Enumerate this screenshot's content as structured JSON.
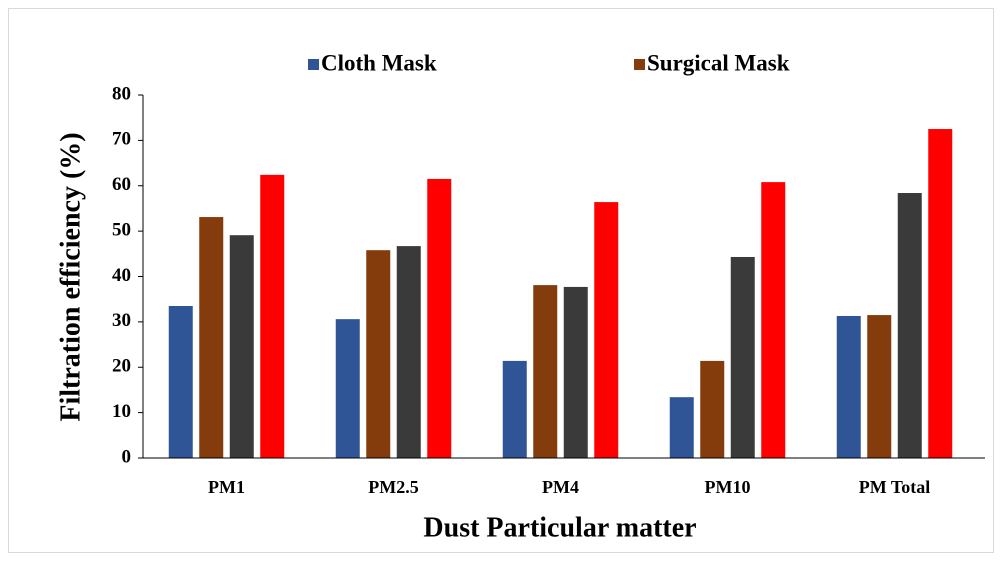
{
  "chart_data": {
    "type": "bar",
    "categories": [
      "PM1",
      "PM2.5",
      "PM4",
      "PM10",
      "PM Total"
    ],
    "series": [
      {
        "name": "Cloth Mask",
        "color": "#2f5597",
        "values": [
          33.5,
          30.6,
          21.4,
          13.4,
          31.3
        ]
      },
      {
        "name": "Surgical Mask",
        "color": "#843c0c",
        "values": [
          53.1,
          45.8,
          38.1,
          21.4,
          31.5
        ]
      },
      {
        "color": "#3a3a3a",
        "values": [
          49.1,
          46.7,
          37.7,
          44.3,
          58.4
        ]
      },
      {
        "color": "#ff0000",
        "values": [
          62.4,
          61.5,
          56.4,
          60.8,
          72.5
        ]
      }
    ],
    "x_label": "Dust Particular matter",
    "y_label": "Filtration efficiency (%)",
    "ylim": [
      0,
      80
    ],
    "yticks": [
      0,
      10,
      20,
      30,
      40,
      50,
      60,
      70,
      80
    ],
    "grid": false,
    "legend": "top"
  }
}
